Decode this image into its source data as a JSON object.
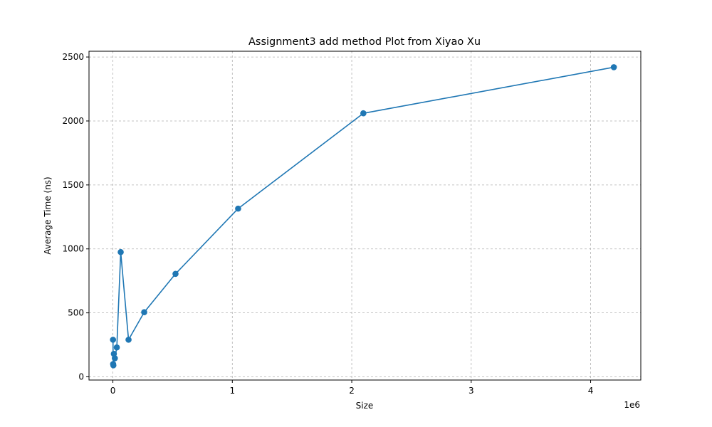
{
  "chart_data": {
    "type": "line",
    "title": "Assignment3 add method Plot from Xiyao Xu",
    "xlabel": "Size",
    "ylabel": "Average Time (ns)",
    "x_offset_label": "1e6",
    "xlim": [
      -200000,
      4420000
    ],
    "ylim": [
      -25,
      2545
    ],
    "xticks": [
      0,
      1000000,
      2000000,
      3000000,
      4000000
    ],
    "xtick_labels": [
      "0",
      "1",
      "2",
      "3",
      "4"
    ],
    "yticks": [
      0,
      500,
      1000,
      1500,
      2000,
      2500
    ],
    "ytick_labels": [
      "0",
      "500",
      "1000",
      "1500",
      "2000",
      "2500"
    ],
    "grid": true,
    "marker": "circle",
    "series": [
      {
        "color": "#1f77b4",
        "x": [
          1024,
          2048,
          4096,
          8192,
          16384,
          32768,
          65536,
          131072,
          262144,
          524288,
          1048576,
          2097152,
          4194304
        ],
        "y": [
          290,
          100,
          90,
          180,
          145,
          230,
          975,
          290,
          505,
          805,
          1315,
          2060,
          2420
        ]
      }
    ]
  }
}
